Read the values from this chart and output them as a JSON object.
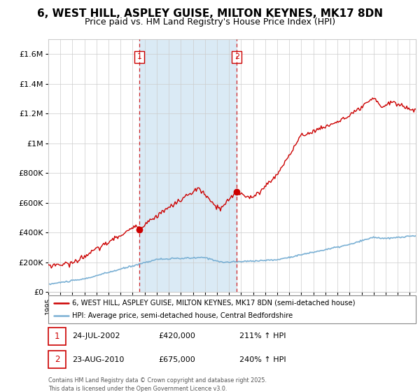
{
  "title_line1": "6, WEST HILL, ASPLEY GUISE, MILTON KEYNES, MK17 8DN",
  "title_line2": "Price paid vs. HM Land Registry's House Price Index (HPI)",
  "legend_label_red": "6, WEST HILL, ASPLEY GUISE, MILTON KEYNES, MK17 8DN (semi-detached house)",
  "legend_label_blue": "HPI: Average price, semi-detached house, Central Bedfordshire",
  "footer": "Contains HM Land Registry data © Crown copyright and database right 2025.\nThis data is licensed under the Open Government Licence v3.0.",
  "sale1_date": "24-JUL-2002",
  "sale1_price": "£420,000",
  "sale1_hpi": "211% ↑ HPI",
  "sale1_year": 2002.56,
  "sale1_value": 420000,
  "sale2_date": "23-AUG-2010",
  "sale2_price": "£675,000",
  "sale2_hpi": "240% ↑ HPI",
  "sale2_year": 2010.64,
  "sale2_value": 675000,
  "vline1_x": 2002.56,
  "vline2_x": 2010.64,
  "red_color": "#cc0000",
  "blue_color": "#7ab0d4",
  "shading_color": "#daeaf5",
  "background_color": "#ffffff",
  "ylim_min": 0,
  "ylim_max": 1700000,
  "xlim_min": 1995,
  "xlim_max": 2025.5,
  "title_fontsize": 11,
  "subtitle_fontsize": 9
}
